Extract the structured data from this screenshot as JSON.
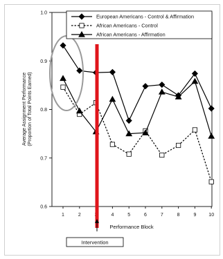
{
  "chart_data": {
    "type": "line",
    "xlabel": "Performance Block",
    "ylabel_line1": "Average Assignment Performance",
    "ylabel_line2": "(Proportion of Total Points Earned)",
    "x": [
      1,
      2,
      3,
      4,
      5,
      6,
      7,
      8,
      9,
      10
    ],
    "x_ticks": [
      "1",
      "2",
      "3",
      "4",
      "5",
      "6",
      "7",
      "8",
      "9",
      "10"
    ],
    "ylim": [
      0.6,
      1.0
    ],
    "y_ticks": [
      "0.6",
      "0.7",
      "0.8",
      "0.9",
      "1.0"
    ],
    "grid": false,
    "legend_position": "top-right",
    "series": [
      {
        "name": "European Americans - Control & Affirmation",
        "marker": "diamond",
        "line": "solid",
        "fill": "#000000",
        "values": [
          0.932,
          0.88,
          0.876,
          0.877,
          0.777,
          0.848,
          0.851,
          0.829,
          0.874,
          0.802
        ]
      },
      {
        "name": "African Americans - Control",
        "marker": "square",
        "line": "dashed",
        "fill": "#ffffff",
        "values": [
          0.846,
          0.79,
          0.814,
          0.728,
          0.708,
          0.756,
          0.706,
          0.726,
          0.758,
          0.651
        ]
      },
      {
        "name": "African Americans - Affirmation",
        "marker": "triangle",
        "line": "solid",
        "fill": "#000000",
        "values": [
          0.864,
          0.797,
          0.754,
          0.821,
          0.75,
          0.752,
          0.836,
          0.826,
          0.858,
          0.745
        ]
      }
    ],
    "annotations": {
      "intervention_label": "Intervention",
      "intervention_color": "#e0151b",
      "highlight_color": "#9a9a9a"
    }
  }
}
